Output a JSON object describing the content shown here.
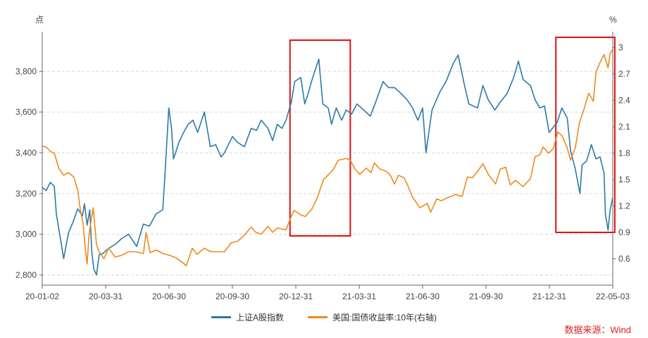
{
  "chart_data": {
    "type": "line",
    "left_axis_unit": "点",
    "right_axis_unit": "%",
    "x_tick_labels": [
      "20-01-02",
      "20-03-31",
      "20-06-30",
      "20-09-30",
      "20-12-31",
      "21-03-31",
      "21-06-30",
      "21-09-30",
      "21-12-31",
      "22-05-03"
    ],
    "x_range": [
      "2020-01-02",
      "2022-05-03"
    ],
    "y_left": {
      "min": 2750,
      "max": 3960,
      "ticks": [
        2800,
        3000,
        3200,
        3400,
        3600,
        3800
      ],
      "tick_labels": [
        "2,800",
        "3,000",
        "3,200",
        "3,400",
        "3,600",
        "3,800"
      ]
    },
    "y_right": {
      "min": 0.3,
      "max": 3.1,
      "ticks": [
        0.6,
        0.9,
        1.2,
        1.5,
        1.8,
        2.1,
        2.4,
        2.7,
        3.0
      ],
      "tick_labels": [
        "0.6",
        "0.9",
        "1.2",
        "1.5",
        "1.8",
        "2.1",
        "2.4",
        "2.7",
        "3"
      ]
    },
    "grid": "horizontal dashed",
    "legend_position": "bottom",
    "series": [
      {
        "name": "上证A股指数",
        "axis": "left",
        "color": "#2a7aa8",
        "points": [
          [
            "2020-01-02",
            3230
          ],
          [
            "2020-01-08",
            3215
          ],
          [
            "2020-01-14",
            3255
          ],
          [
            "2020-01-20",
            3235
          ],
          [
            "2020-01-23",
            3100
          ],
          [
            "2020-02-03",
            2880
          ],
          [
            "2020-02-10",
            3005
          ],
          [
            "2020-02-17",
            3060
          ],
          [
            "2020-02-24",
            3125
          ],
          [
            "2020-03-02",
            3090
          ],
          [
            "2020-03-05",
            3150
          ],
          [
            "2020-03-09",
            3045
          ],
          [
            "2020-03-13",
            3120
          ],
          [
            "2020-03-16",
            2910
          ],
          [
            "2020-03-19",
            2830
          ],
          [
            "2020-03-23",
            2800
          ],
          [
            "2020-03-27",
            2900
          ],
          [
            "2020-04-01",
            2905
          ],
          [
            "2020-04-10",
            2930
          ],
          [
            "2020-04-20",
            2950
          ],
          [
            "2020-04-30",
            2980
          ],
          [
            "2020-05-10",
            3000
          ],
          [
            "2020-05-22",
            2940
          ],
          [
            "2020-06-01",
            3050
          ],
          [
            "2020-06-10",
            3040
          ],
          [
            "2020-06-20",
            3100
          ],
          [
            "2020-06-30",
            3120
          ],
          [
            "2020-07-03",
            3280
          ],
          [
            "2020-07-06",
            3450
          ],
          [
            "2020-07-09",
            3620
          ],
          [
            "2020-07-13",
            3520
          ],
          [
            "2020-07-16",
            3370
          ],
          [
            "2020-07-24",
            3450
          ],
          [
            "2020-07-31",
            3500
          ],
          [
            "2020-08-07",
            3540
          ],
          [
            "2020-08-14",
            3560
          ],
          [
            "2020-08-21",
            3500
          ],
          [
            "2020-08-31",
            3600
          ],
          [
            "2020-09-09",
            3430
          ],
          [
            "2020-09-17",
            3440
          ],
          [
            "2020-09-25",
            3380
          ],
          [
            "2020-09-30",
            3400
          ],
          [
            "2020-10-12",
            3480
          ],
          [
            "2020-10-20",
            3450
          ],
          [
            "2020-10-30",
            3430
          ],
          [
            "2020-11-09",
            3520
          ],
          [
            "2020-11-17",
            3510
          ],
          [
            "2020-11-24",
            3560
          ],
          [
            "2020-12-04",
            3520
          ],
          [
            "2020-12-11",
            3460
          ],
          [
            "2020-12-18",
            3540
          ],
          [
            "2020-12-25",
            3520
          ],
          [
            "2020-12-31",
            3560
          ],
          [
            "2021-01-08",
            3650
          ],
          [
            "2021-01-13",
            3750
          ],
          [
            "2021-01-22",
            3770
          ],
          [
            "2021-01-28",
            3640
          ],
          [
            "2021-02-02",
            3690
          ],
          [
            "2021-02-08",
            3760
          ],
          [
            "2021-02-18",
            3860
          ],
          [
            "2021-02-24",
            3640
          ],
          [
            "2021-03-04",
            3620
          ],
          [
            "2021-03-09",
            3540
          ],
          [
            "2021-03-16",
            3620
          ],
          [
            "2021-03-24",
            3560
          ],
          [
            "2021-03-31",
            3610
          ],
          [
            "2021-04-08",
            3590
          ],
          [
            "2021-04-16",
            3640
          ],
          [
            "2021-04-26",
            3610
          ],
          [
            "2021-05-06",
            3580
          ],
          [
            "2021-05-14",
            3650
          ],
          [
            "2021-05-25",
            3750
          ],
          [
            "2021-06-02",
            3720
          ],
          [
            "2021-06-11",
            3720
          ],
          [
            "2021-06-18",
            3700
          ],
          [
            "2021-06-30",
            3660
          ],
          [
            "2021-07-08",
            3620
          ],
          [
            "2021-07-16",
            3560
          ],
          [
            "2021-07-23",
            3620
          ],
          [
            "2021-07-28",
            3400
          ],
          [
            "2021-08-06",
            3610
          ],
          [
            "2021-08-18",
            3700
          ],
          [
            "2021-08-27",
            3750
          ],
          [
            "2021-09-07",
            3840
          ],
          [
            "2021-09-14",
            3880
          ],
          [
            "2021-09-23",
            3740
          ],
          [
            "2021-09-30",
            3640
          ],
          [
            "2021-10-13",
            3620
          ],
          [
            "2021-10-21",
            3730
          ],
          [
            "2021-10-29",
            3660
          ],
          [
            "2021-11-08",
            3610
          ],
          [
            "2021-11-16",
            3650
          ],
          [
            "2021-11-26",
            3690
          ],
          [
            "2021-12-06",
            3770
          ],
          [
            "2021-12-13",
            3850
          ],
          [
            "2021-12-20",
            3760
          ],
          [
            "2021-12-31",
            3730
          ],
          [
            "2022-01-07",
            3660
          ],
          [
            "2022-01-14",
            3620
          ],
          [
            "2022-01-21",
            3630
          ],
          [
            "2022-01-28",
            3500
          ],
          [
            "2022-02-09",
            3550
          ],
          [
            "2022-02-16",
            3620
          ],
          [
            "2022-02-24",
            3570
          ],
          [
            "2022-03-01",
            3410
          ],
          [
            "2022-03-08",
            3320
          ],
          [
            "2022-03-15",
            3200
          ],
          [
            "2022-03-18",
            3340
          ],
          [
            "2022-03-25",
            3360
          ],
          [
            "2022-04-01",
            3440
          ],
          [
            "2022-04-08",
            3370
          ],
          [
            "2022-04-14",
            3380
          ],
          [
            "2022-04-20",
            3300
          ],
          [
            "2022-04-22",
            3100
          ],
          [
            "2022-04-26",
            3020
          ],
          [
            "2022-04-29",
            3120
          ],
          [
            "2022-05-03",
            3180
          ]
        ]
      },
      {
        "name": "美国:国债收益率:10年(右轴)",
        "axis": "right",
        "color": "#f0891d",
        "points": [
          [
            "2020-01-02",
            1.88
          ],
          [
            "2020-01-08",
            1.87
          ],
          [
            "2020-01-14",
            1.82
          ],
          [
            "2020-01-20",
            1.8
          ],
          [
            "2020-01-27",
            1.62
          ],
          [
            "2020-02-03",
            1.55
          ],
          [
            "2020-02-10",
            1.58
          ],
          [
            "2020-02-18",
            1.53
          ],
          [
            "2020-02-24",
            1.38
          ],
          [
            "2020-02-28",
            1.15
          ],
          [
            "2020-03-03",
            1.0
          ],
          [
            "2020-03-06",
            0.74
          ],
          [
            "2020-03-09",
            0.54
          ],
          [
            "2020-03-12",
            0.88
          ],
          [
            "2020-03-18",
            1.18
          ],
          [
            "2020-03-23",
            0.76
          ],
          [
            "2020-03-27",
            0.68
          ],
          [
            "2020-04-03",
            0.6
          ],
          [
            "2020-04-10",
            0.72
          ],
          [
            "2020-04-20",
            0.62
          ],
          [
            "2020-04-30",
            0.64
          ],
          [
            "2020-05-10",
            0.68
          ],
          [
            "2020-05-20",
            0.68
          ],
          [
            "2020-06-01",
            0.66
          ],
          [
            "2020-06-05",
            0.9
          ],
          [
            "2020-06-11",
            0.67
          ],
          [
            "2020-06-20",
            0.7
          ],
          [
            "2020-06-30",
            0.66
          ],
          [
            "2020-07-10",
            0.64
          ],
          [
            "2020-07-20",
            0.61
          ],
          [
            "2020-07-31",
            0.55
          ],
          [
            "2020-08-04",
            0.52
          ],
          [
            "2020-08-13",
            0.72
          ],
          [
            "2020-08-20",
            0.65
          ],
          [
            "2020-08-31",
            0.72
          ],
          [
            "2020-09-10",
            0.68
          ],
          [
            "2020-09-20",
            0.68
          ],
          [
            "2020-09-30",
            0.68
          ],
          [
            "2020-10-10",
            0.78
          ],
          [
            "2020-10-20",
            0.8
          ],
          [
            "2020-10-30",
            0.87
          ],
          [
            "2020-11-09",
            0.96
          ],
          [
            "2020-11-16",
            0.9
          ],
          [
            "2020-11-24",
            0.88
          ],
          [
            "2020-12-04",
            0.97
          ],
          [
            "2020-12-11",
            0.9
          ],
          [
            "2020-12-18",
            0.95
          ],
          [
            "2020-12-24",
            0.94
          ],
          [
            "2020-12-31",
            0.93
          ],
          [
            "2021-01-06",
            1.05
          ],
          [
            "2021-01-12",
            1.15
          ],
          [
            "2021-01-22",
            1.1
          ],
          [
            "2021-01-29",
            1.08
          ],
          [
            "2021-02-08",
            1.17
          ],
          [
            "2021-02-16",
            1.3
          ],
          [
            "2021-02-25",
            1.5
          ],
          [
            "2021-03-05",
            1.56
          ],
          [
            "2021-03-12",
            1.62
          ],
          [
            "2021-03-19",
            1.72
          ],
          [
            "2021-03-31",
            1.74
          ],
          [
            "2021-04-06",
            1.72
          ],
          [
            "2021-04-13",
            1.62
          ],
          [
            "2021-04-20",
            1.56
          ],
          [
            "2021-04-30",
            1.63
          ],
          [
            "2021-05-07",
            1.58
          ],
          [
            "2021-05-12",
            1.69
          ],
          [
            "2021-05-20",
            1.62
          ],
          [
            "2021-05-28",
            1.6
          ],
          [
            "2021-06-04",
            1.56
          ],
          [
            "2021-06-11",
            1.45
          ],
          [
            "2021-06-17",
            1.55
          ],
          [
            "2021-06-25",
            1.52
          ],
          [
            "2021-06-30",
            1.45
          ],
          [
            "2021-07-08",
            1.3
          ],
          [
            "2021-07-19",
            1.18
          ],
          [
            "2021-07-30",
            1.23
          ],
          [
            "2021-08-04",
            1.13
          ],
          [
            "2021-08-13",
            1.28
          ],
          [
            "2021-08-20",
            1.26
          ],
          [
            "2021-08-31",
            1.3
          ],
          [
            "2021-09-10",
            1.33
          ],
          [
            "2021-09-20",
            1.31
          ],
          [
            "2021-09-28",
            1.53
          ],
          [
            "2021-10-05",
            1.52
          ],
          [
            "2021-10-12",
            1.58
          ],
          [
            "2021-10-21",
            1.68
          ],
          [
            "2021-10-29",
            1.56
          ],
          [
            "2021-11-09",
            1.45
          ],
          [
            "2021-11-16",
            1.62
          ],
          [
            "2021-11-24",
            1.64
          ],
          [
            "2021-12-01",
            1.44
          ],
          [
            "2021-12-09",
            1.49
          ],
          [
            "2021-12-20",
            1.42
          ],
          [
            "2021-12-31",
            1.51
          ],
          [
            "2022-01-07",
            1.76
          ],
          [
            "2022-01-14",
            1.78
          ],
          [
            "2022-01-19",
            1.87
          ],
          [
            "2022-01-27",
            1.8
          ],
          [
            "2022-02-03",
            1.85
          ],
          [
            "2022-02-10",
            2.04
          ],
          [
            "2022-02-16",
            2.0
          ],
          [
            "2022-02-24",
            1.86
          ],
          [
            "2022-03-01",
            1.72
          ],
          [
            "2022-03-08",
            1.86
          ],
          [
            "2022-03-14",
            2.14
          ],
          [
            "2022-03-21",
            2.3
          ],
          [
            "2022-03-28",
            2.48
          ],
          [
            "2022-04-04",
            2.39
          ],
          [
            "2022-04-08",
            2.72
          ],
          [
            "2022-04-14",
            2.83
          ],
          [
            "2022-04-20",
            2.92
          ],
          [
            "2022-04-26",
            2.77
          ],
          [
            "2022-04-29",
            2.93
          ],
          [
            "2022-05-03",
            2.98
          ]
        ]
      }
    ]
  },
  "legend": {
    "series1_label": "上证A股指数",
    "series2_label": "美国:国债收益率:10年(右轴)",
    "series1_color": "#2a7aa8",
    "series2_color": "#f0891d"
  },
  "source_text": "数据来源：Wind",
  "highlight_color": "#e01010",
  "highlights": [
    {
      "from": "2021-01-06",
      "to": "2021-04-06"
    },
    {
      "from": "2022-02-07",
      "to": "2022-05-06"
    }
  ]
}
